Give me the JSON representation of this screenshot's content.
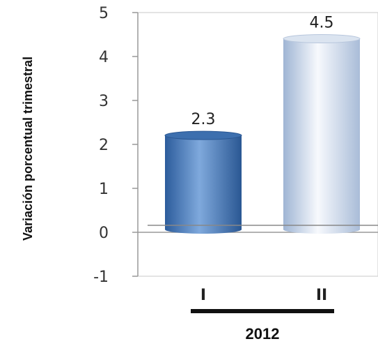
{
  "chart_data": {
    "type": "bar",
    "title": "",
    "ylabel": "Variación porcentual trimestral",
    "xlabel": "",
    "categories": [
      "I",
      "II"
    ],
    "group_label": "2012",
    "values": [
      2.3,
      4.5
    ],
    "value_labels": [
      "2.3",
      "4.5"
    ],
    "ylim": [
      -1,
      5
    ],
    "yticks": [
      -1,
      0,
      1,
      2,
      3,
      4,
      5
    ],
    "ytick_labels": [
      "-1",
      "0",
      "1",
      "2",
      "3",
      "4",
      "5"
    ],
    "grid": false,
    "bar_colors": [
      "#4a7fc1",
      "#c9d7ea"
    ]
  }
}
